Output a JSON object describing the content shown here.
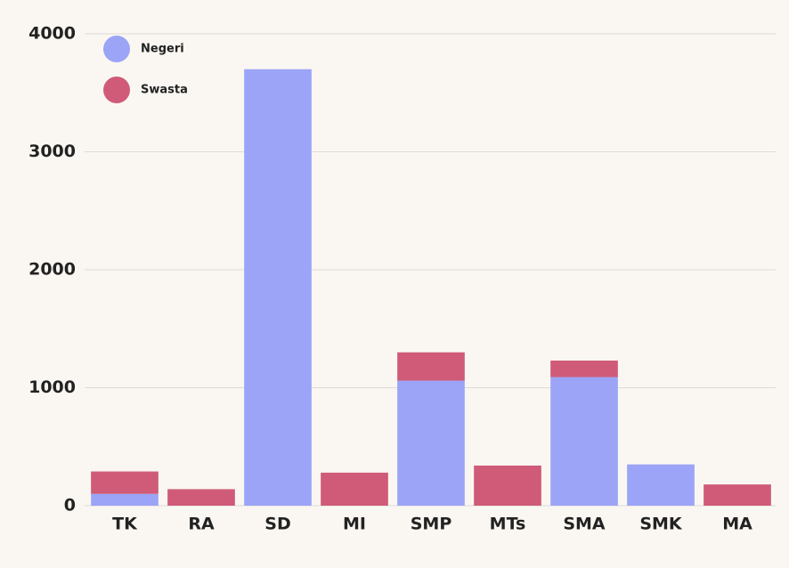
{
  "chart_data": {
    "type": "stacked-bar",
    "categories": [
      "TK",
      "RA",
      "SD",
      "MI",
      "SMP",
      "MTs",
      "SMA",
      "SMK",
      "MA"
    ],
    "series": [
      {
        "name": "Negeri",
        "color": "#9ba4f6",
        "values": [
          100,
          0,
          3700,
          0,
          1060,
          0,
          1090,
          350,
          0
        ]
      },
      {
        "name": "Swasta",
        "color": "#cf5b78",
        "values": [
          190,
          140,
          0,
          280,
          240,
          340,
          140,
          0,
          180
        ]
      }
    ],
    "ylim": [
      0,
      4000
    ],
    "yticks": [
      0,
      1000,
      2000,
      3000,
      4000
    ],
    "grid": true,
    "legend": "top-left"
  }
}
